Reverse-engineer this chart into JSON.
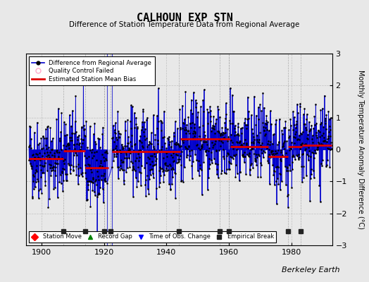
{
  "title": "CALHOUN EXP STN",
  "subtitle": "Difference of Station Temperature Data from Regional Average",
  "ylabel": "Monthly Temperature Anomaly Difference (°C)",
  "ylim": [
    -3,
    3
  ],
  "xlim": [
    1895,
    1993
  ],
  "xticks": [
    1900,
    1920,
    1940,
    1960,
    1980
  ],
  "yticks": [
    -3,
    -2,
    -1,
    0,
    1,
    2,
    3
  ],
  "background_color": "#e8e8e8",
  "plot_bg_color": "#e8e8e8",
  "seed": 42,
  "start_year": 1896.0,
  "end_year": 1992.9,
  "bias_segments": [
    {
      "x_start": 1896.0,
      "x_end": 1907.0,
      "bias": -0.28
    },
    {
      "x_start": 1907.0,
      "x_end": 1914.0,
      "bias": -0.05
    },
    {
      "x_start": 1914.0,
      "x_end": 1920.0,
      "bias": -0.58
    },
    {
      "x_start": 1920.0,
      "x_end": 1921.5,
      "bias": -0.58
    },
    {
      "x_start": 1922.5,
      "x_end": 1937.0,
      "bias": -0.07
    },
    {
      "x_start": 1937.0,
      "x_end": 1944.5,
      "bias": -0.07
    },
    {
      "x_start": 1944.5,
      "x_end": 1957.0,
      "bias": 0.32
    },
    {
      "x_start": 1957.0,
      "x_end": 1960.5,
      "bias": 0.32
    },
    {
      "x_start": 1960.5,
      "x_end": 1972.5,
      "bias": 0.08
    },
    {
      "x_start": 1972.5,
      "x_end": 1979.0,
      "bias": -0.22
    },
    {
      "x_start": 1979.0,
      "x_end": 1983.5,
      "bias": 0.08
    },
    {
      "x_start": 1983.5,
      "x_end": 1992.9,
      "bias": 0.13
    }
  ],
  "empirical_breaks": [
    1907,
    1914,
    1920,
    1922,
    1944,
    1957,
    1960,
    1979,
    1983
  ],
  "gap_start": 1921.0,
  "gap_end": 1922.5,
  "line_color": "#0000cc",
  "fill_color": "#aaaaff",
  "fill_alpha": 0.85,
  "bias_color": "#dd0000",
  "bias_linewidth": 2.0,
  "marker_color": "#000000",
  "marker_size": 3.5,
  "break_marker_color": "#222222",
  "break_marker_size": 5,
  "break_y": -2.55,
  "watermark": "Berkeley Earth",
  "watermark_fontsize": 8
}
